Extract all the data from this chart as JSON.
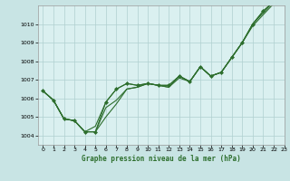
{
  "title": "Graphe pression niveau de la mer (hPa)",
  "background_color": "#c8e4e4",
  "plot_bg_color": "#daf0f0",
  "grid_color": "#b0d0d0",
  "line_color": "#2d6e2d",
  "marker_color": "#2d6e2d",
  "xlim": [
    -0.5,
    23
  ],
  "ylim": [
    1003.5,
    1011.0
  ],
  "yticks": [
    1004,
    1005,
    1006,
    1007,
    1008,
    1009,
    1010
  ],
  "xticks": [
    0,
    1,
    2,
    3,
    4,
    5,
    6,
    7,
    8,
    9,
    10,
    11,
    12,
    13,
    14,
    15,
    16,
    17,
    18,
    19,
    20,
    21,
    22,
    23
  ],
  "series": [
    [
      1006.4,
      1005.9,
      1004.9,
      1004.8,
      1004.2,
      1004.2,
      1005.8,
      1006.5,
      1006.8,
      1006.7,
      1006.8,
      1006.7,
      1006.7,
      1007.2,
      1006.9,
      1007.7,
      1007.2,
      1007.4,
      1008.2,
      1009.0,
      1010.0,
      1010.7,
      1011.2,
      1011.5
    ],
    [
      1006.4,
      1005.9,
      1004.9,
      1004.8,
      1004.2,
      1004.2,
      1005.5,
      1005.9,
      1006.5,
      1006.6,
      1006.8,
      1006.7,
      1006.6,
      1007.2,
      1006.9,
      1007.7,
      1007.2,
      1007.4,
      1008.2,
      1009.0,
      1010.0,
      1010.7,
      1011.2,
      1011.5
    ],
    [
      1006.4,
      1005.9,
      1004.9,
      1004.8,
      1004.2,
      1004.5,
      1005.8,
      1006.5,
      1006.8,
      1006.7,
      1006.8,
      1006.7,
      1006.7,
      1007.2,
      1006.9,
      1007.7,
      1007.2,
      1007.4,
      1008.2,
      1009.0,
      1009.9,
      1010.5,
      1011.1,
      1011.4
    ],
    [
      1006.4,
      1005.9,
      1004.9,
      1004.8,
      1004.2,
      1004.2,
      1005.0,
      1005.7,
      1006.5,
      1006.6,
      1006.8,
      1006.7,
      1006.6,
      1007.1,
      1006.9,
      1007.7,
      1007.2,
      1007.4,
      1008.2,
      1009.0,
      1010.0,
      1010.6,
      1011.2,
      1011.5
    ]
  ],
  "marker_series_index": 0,
  "xlabel_fontsize": 5.5,
  "tick_fontsize": 4.5
}
